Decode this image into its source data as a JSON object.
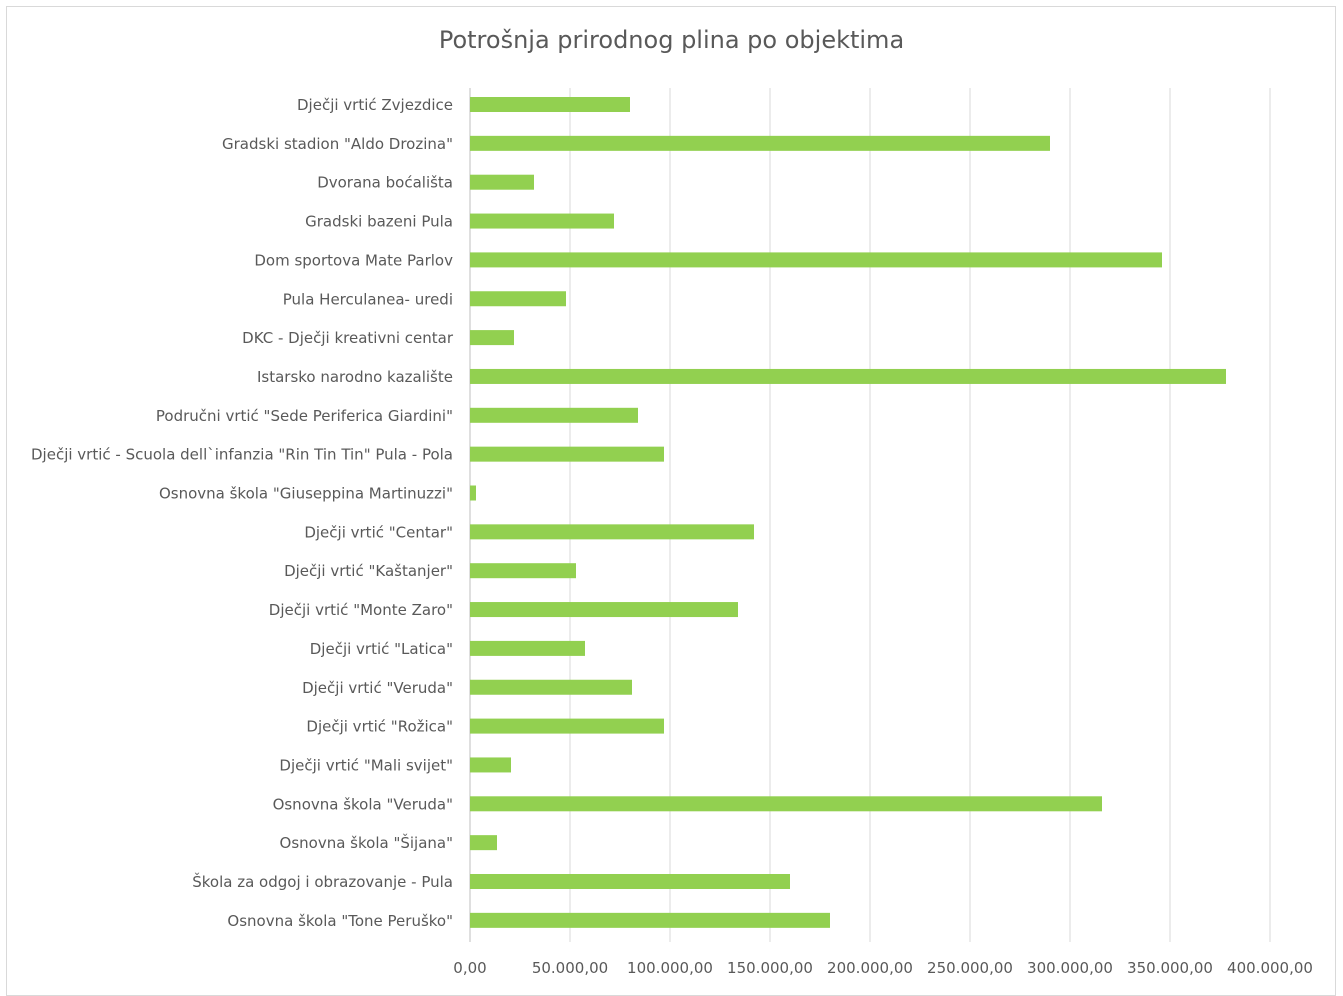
{
  "chart_data": {
    "type": "bar",
    "orientation": "horizontal",
    "title": "Potrošnja prirodnog plina po objektima",
    "xlabel": "",
    "ylabel": "",
    "xlim": [
      0,
      400000
    ],
    "x_ticks": [
      "0,00",
      "50.000,00",
      "100.000,00",
      "150.000,00",
      "200.000,00",
      "250.000,00",
      "300.000,00",
      "350.000,00",
      "400.000,00"
    ],
    "grid": "vertical",
    "legend": "none",
    "bar_color": "#92d050",
    "categories": [
      "Dječji vrtić Zvjezdice",
      "Gradski stadion \"Aldo Drozina\"",
      "Dvorana boćališta",
      "Gradski bazeni Pula",
      "Dom sportova Mate Parlov",
      "Pula Herculanea- uredi",
      "DKC - Dječji kreativni centar",
      "Istarsko narodno kazalište",
      "Područni vrtić \"Sede Periferica Giardini\"",
      "Dječji vrtić - Scuola dell`infanzia \"Rin Tin Tin\" Pula - Pola",
      "Osnovna škola \"Giuseppina Martinuzzi\"",
      "Dječji vrtić \"Centar\"",
      "Dječji vrtić \"Kaštanjer\"",
      "Dječji vrtić \"Monte Zaro\"",
      "Dječji vrtić \"Latica\"",
      "Dječji vrtić \"Veruda\"",
      "Dječji vrtić \"Rožica\"",
      "Dječji vrtić \"Mali svijet\"",
      "Osnovna škola \"Veruda\"",
      "Osnovna škola \"Šijana\"",
      "Škola za odgoj i obrazovanje - Pula",
      "Osnovna škola \"Tone Peruško\""
    ],
    "values": [
      80000,
      290000,
      32000,
      72000,
      346000,
      48000,
      22000,
      378000,
      84000,
      97000,
      3000,
      142000,
      53000,
      134000,
      57500,
      81000,
      97000,
      20500,
      316000,
      13500,
      160000,
      180000
    ]
  }
}
